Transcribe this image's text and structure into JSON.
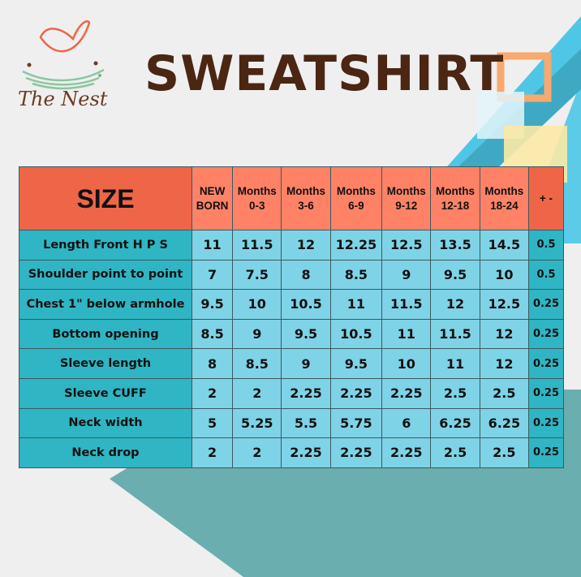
{
  "brand": {
    "name": "The Nest",
    "logo_icon": "bird-nest-logo"
  },
  "title": "SWEATSHIRT",
  "colors": {
    "header_dark": "#ef6547",
    "header_light": "#ff8266",
    "label_cells": "#2fb5c3",
    "value_cells": "#7fd3e6",
    "title": "#4a2613"
  },
  "table": {
    "size_label": "SIZE",
    "columns": [
      [
        "NEW",
        "BORN"
      ],
      [
        "Months",
        "0-3"
      ],
      [
        "Months",
        "3-6"
      ],
      [
        "Months",
        "6-9"
      ],
      [
        "Months",
        "9-12"
      ],
      [
        "Months",
        "12-18"
      ],
      [
        "Months",
        "18-24"
      ]
    ],
    "tolerance_label": "+ -",
    "rows": [
      {
        "label": "Length Front H P S",
        "values": [
          "11",
          "11.5",
          "12",
          "12.25",
          "12.5",
          "13.5",
          "14.5"
        ],
        "tol": "0.5"
      },
      {
        "label": "Shoulder point to point",
        "values": [
          "7",
          "7.5",
          "8",
          "8.5",
          "9",
          "9.5",
          "10"
        ],
        "tol": "0.5"
      },
      {
        "label": "Chest 1\" below armhole",
        "values": [
          "9.5",
          "10",
          "10.5",
          "11",
          "11.5",
          "12",
          "12.5"
        ],
        "tol": "0.25"
      },
      {
        "label": "Bottom opening",
        "values": [
          "8.5",
          "9",
          "9.5",
          "10.5",
          "11",
          "11.5",
          "12"
        ],
        "tol": "0.25"
      },
      {
        "label": "Sleeve length",
        "values": [
          "8",
          "8.5",
          "9",
          "9.5",
          "10",
          "11",
          "12"
        ],
        "tol": "0.25"
      },
      {
        "label": "Sleeve CUFF",
        "values": [
          "2",
          "2",
          "2.25",
          "2.25",
          "2.25",
          "2.5",
          "2.5"
        ],
        "tol": "0.25"
      },
      {
        "label": "Neck width",
        "values": [
          "5",
          "5.25",
          "5.5",
          "5.75",
          "6",
          "6.25",
          "6.25"
        ],
        "tol": "0.25"
      },
      {
        "label": "Neck drop",
        "values": [
          "2",
          "2",
          "2.25",
          "2.25",
          "2.25",
          "2.5",
          "2.5"
        ],
        "tol": "0.25"
      }
    ]
  }
}
